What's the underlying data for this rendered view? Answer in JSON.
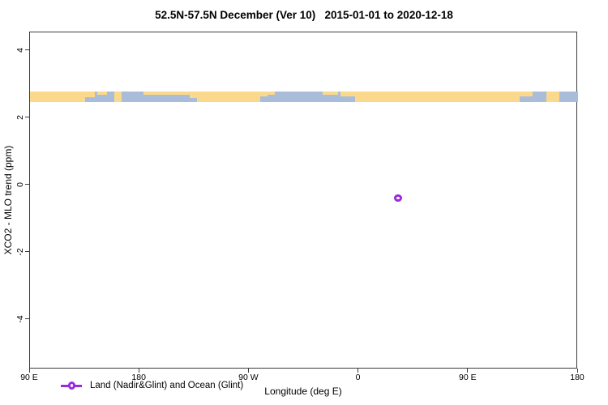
{
  "chart_data": {
    "type": "scatter",
    "title": "52.5N-57.5N December (Ver 10)   2015-01-01 to 2020-12-18",
    "xlabel": "Longitude (deg E)",
    "ylabel": "XCO2 - MLO trend (ppm)",
    "grid": false,
    "xlim_deg": [
      90,
      540
    ],
    "ylim": [
      -5.47,
      4.55
    ],
    "x_ticks": [
      {
        "value": 90,
        "label": "90 E"
      },
      {
        "value": 180,
        "label": "180"
      },
      {
        "value": 270,
        "label": "90 W"
      },
      {
        "value": 360,
        "label": "0"
      },
      {
        "value": 450,
        "label": "90 E"
      },
      {
        "value": 540,
        "label": "180"
      }
    ],
    "y_ticks": [
      {
        "value": 4,
        "label": "4"
      },
      {
        "value": 2,
        "label": "2"
      },
      {
        "value": 0,
        "label": "0"
      },
      {
        "value": -2,
        "label": "-2"
      },
      {
        "value": -4,
        "label": "-4"
      }
    ],
    "series": [
      {
        "name": "Land (Nadir&Glint) and Ocean (Glint)",
        "marker": "open-circle",
        "color": "#9B2BDE",
        "points": [
          {
            "x_deg": 393,
            "lon_east": 33,
            "y": -0.4
          }
        ]
      }
    ],
    "legend": {
      "position": "bottom-left",
      "entries": [
        {
          "label": "Land (Nadir&Glint) and Ocean (Glint)",
          "color": "#9B2BDE",
          "marker": "line-open-circle"
        }
      ]
    },
    "map_strip": {
      "description": "land/ocean map band for latitude 52.5N-57.5N drawn across the plot",
      "y_top": 2.8,
      "y_bottom": 2.48,
      "ocean_color": "#A9BDDA",
      "land_color": "#FBD98C",
      "land_segments": [
        {
          "from": 90,
          "to": 135,
          "valign": "full",
          "h": 1
        },
        {
          "from": 133,
          "to": 143,
          "valign": "top",
          "h": 0.55
        },
        {
          "from": 145,
          "to": 153,
          "valign": "top",
          "h": 0.35
        },
        {
          "from": 159,
          "to": 165,
          "valign": "full",
          "h": 1
        },
        {
          "from": 183,
          "to": 221,
          "valign": "top",
          "h": 0.35
        },
        {
          "from": 221,
          "to": 227,
          "valign": "top",
          "h": 0.6
        },
        {
          "from": 227,
          "to": 279,
          "valign": "full",
          "h": 1
        },
        {
          "from": 279,
          "to": 285,
          "valign": "top",
          "h": 0.5
        },
        {
          "from": 285,
          "to": 291,
          "valign": "top",
          "h": 0.35
        },
        {
          "from": 330,
          "to": 343,
          "valign": "top",
          "h": 0.3
        },
        {
          "from": 345,
          "to": 357,
          "valign": "top",
          "h": 0.5
        },
        {
          "from": 357,
          "to": 372,
          "valign": "full",
          "h": 1
        },
        {
          "from": 372,
          "to": 492,
          "valign": "full",
          "h": 1
        },
        {
          "from": 492,
          "to": 503,
          "valign": "top",
          "h": 0.5
        },
        {
          "from": 514,
          "to": 525,
          "valign": "full",
          "h": 1
        }
      ]
    },
    "frame_color": "#3c3c3c"
  }
}
